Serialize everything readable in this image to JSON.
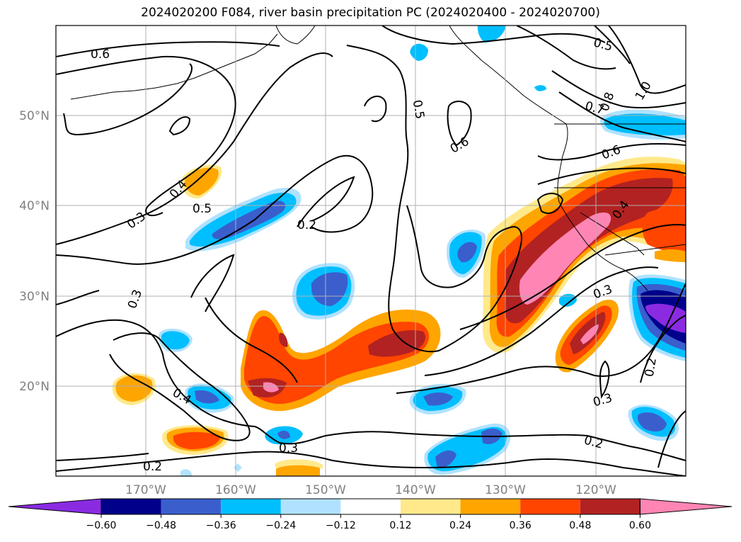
{
  "title": "2024020200 F084, river basin precipitation PC (2024020400 - 2024020700)",
  "lat_labels": [
    "50°N",
    "40°N",
    "30°N",
    "20°N"
  ],
  "lon_labels": [
    "170°W",
    "160°W",
    "150°W",
    "140°W",
    "130°W",
    "120°W"
  ],
  "contour_labels": [
    "0.6",
    "0.4",
    "0.5",
    "0.5",
    "0.6",
    "0.5",
    "0.8",
    "0.7",
    "1.0",
    "0.6",
    "0.4",
    "0.3",
    "0.2",
    "0.3",
    "0.4",
    "0.3",
    "0.3",
    "0.2",
    "0.3",
    "0.2",
    "0.2"
  ],
  "colorbar": {
    "ticks": [
      "−0.60",
      "−0.48",
      "−0.36",
      "−0.24",
      "−0.12",
      "0.12",
      "0.24",
      "0.36",
      "0.48",
      "0.60"
    ],
    "colors": [
      "#8a2be2",
      "#00008b",
      "#3a5fcd",
      "#00bfff",
      "#b0e2ff",
      "#ffffff",
      "#ffe98a",
      "#ffa500",
      "#ff4500",
      "#b22222",
      "#ff85b4"
    ]
  },
  "colors": {
    "grid": "#b0b0b0",
    "axis_label": "#808080",
    "contour": "#000000"
  }
}
